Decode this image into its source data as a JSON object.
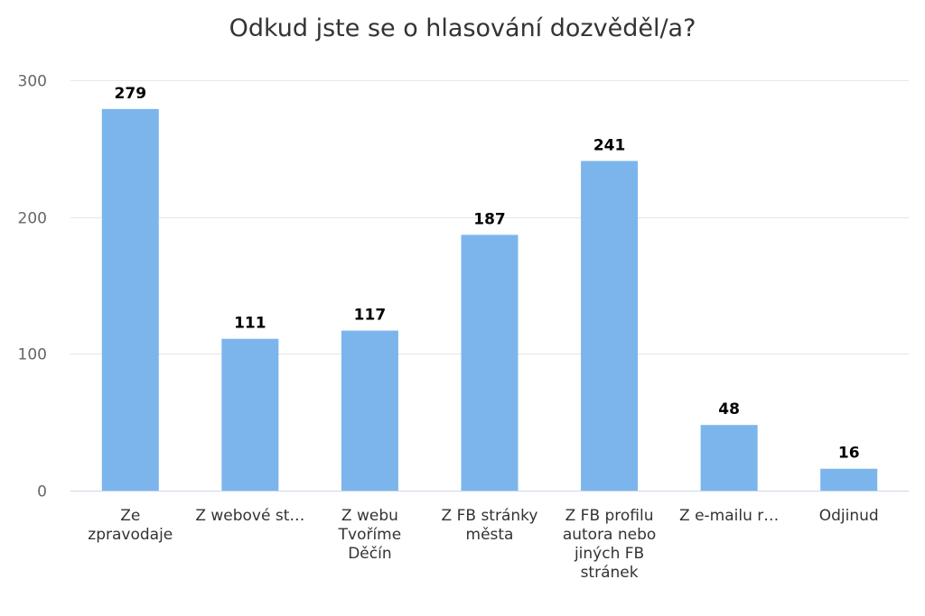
{
  "chart_data": {
    "type": "bar",
    "title": "Odkud jste se o hlasování dozvěděl/a?",
    "xlabel": "",
    "ylabel": "",
    "ylim": [
      0,
      300
    ],
    "yticks": [
      0,
      100,
      200,
      300
    ],
    "grid": true,
    "bar_color": "#7cb5ec",
    "categories": [
      [
        "Ze",
        "zpravodaje"
      ],
      [
        "Z webové st…"
      ],
      [
        "Z webu",
        "Tvoříme",
        "Děčín"
      ],
      [
        "Z FB stránky",
        "města"
      ],
      [
        "Z FB profilu",
        "autora nebo",
        "jiných FB",
        "stránek"
      ],
      [
        "Z e-mailu r…"
      ],
      [
        "Odjinud"
      ]
    ],
    "values": [
      279,
      111,
      117,
      187,
      241,
      48,
      16
    ]
  }
}
